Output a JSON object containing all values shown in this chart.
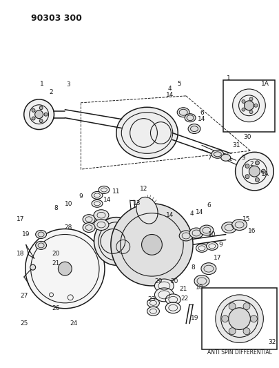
{
  "title": "90303 300",
  "bg_color": "#ffffff",
  "fg_color": "#1a1a1a",
  "fig_width": 4.06,
  "fig_height": 5.33,
  "dpi": 100,
  "anti_spin_label": "ANTI SPIN DIFFERENTIAL"
}
